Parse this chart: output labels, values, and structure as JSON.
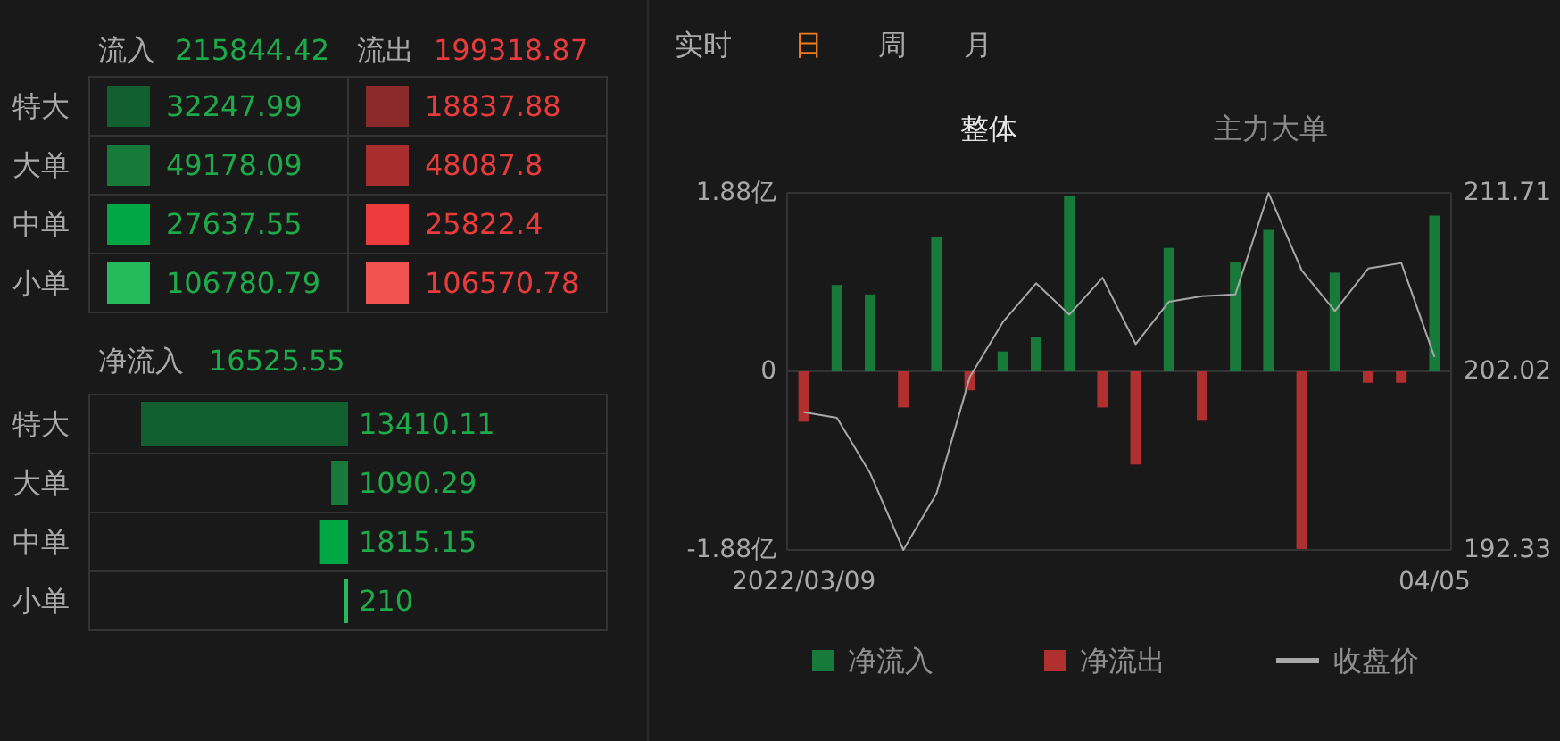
{
  "chart_data": [
    {
      "type": "other",
      "categories": [
        "特大",
        "大单",
        "中单",
        "小单"
      ],
      "data_labels": true,
      "annotations": [
        "215844.42",
        "199318.87"
      ],
      "series": [
        {
          "name": "流入",
          "colors": [
            "#125f30",
            "#177a3a",
            "#00a744",
            "#25bb5c"
          ],
          "values": [
            32247.99,
            49178.09,
            27637.55,
            106780.79
          ]
        },
        {
          "name": "流出",
          "colors": [
            "#8b2a2a",
            "#a82e2e",
            "#ee3b3b",
            "#f25252"
          ],
          "values": [
            18837.88,
            48087.8,
            25822.4,
            106570.78
          ]
        }
      ]
    },
    {
      "type": "bar",
      "orientation": "horizontal",
      "title": "净流入",
      "annotations": [
        "16525.55"
      ],
      "categories": [
        "特大",
        "大单",
        "中单",
        "小单"
      ],
      "values": [
        13410.11,
        1090.29,
        1815.15,
        210
      ],
      "colors": [
        "#125f30",
        "#177a3a",
        "#00a744",
        "#25bb5c"
      ],
      "data_labels": true
    },
    {
      "type": "bar",
      "annotations": [
        "实时",
        "日",
        "周",
        "月",
        "整体",
        "主力大单"
      ],
      "categories": [
        "2022/03/09",
        null,
        null,
        null,
        null,
        null,
        null,
        null,
        null,
        null,
        null,
        null,
        null,
        null,
        null,
        null,
        null,
        null,
        null,
        "04/05"
      ],
      "series": [
        {
          "name": "净流入",
          "color": "#177a3a",
          "values": [
            null,
            0.91,
            0.81,
            null,
            1.42,
            null,
            0.21,
            0.36,
            1.85,
            null,
            null,
            1.3,
            null,
            1.15,
            1.49,
            null,
            1.04,
            null,
            null,
            1.64
          ]
        },
        {
          "name": "净流出",
          "color": "#b03030",
          "values": [
            -0.53,
            null,
            null,
            -0.38,
            null,
            -0.2,
            null,
            null,
            null,
            -0.38,
            -0.98,
            null,
            -0.52,
            null,
            null,
            -1.87,
            null,
            -0.12,
            -0.12,
            null
          ]
        },
        {
          "name": "收盘价",
          "type": "line",
          "axis": "y2",
          "color": "#a8a8a8",
          "values": [
            199.8,
            199.5,
            196.5,
            192.33,
            195.4,
            201.7,
            204.7,
            206.8,
            205.1,
            207.1,
            203.5,
            205.8,
            206.1,
            206.2,
            211.7,
            207.5,
            205.3,
            207.6,
            207.9,
            202.8
          ]
        }
      ],
      "ylim": [
        -1.88,
        1.88
      ],
      "yticks": [
        {
          "value": 1.88,
          "label": "1.88亿"
        },
        0,
        {
          "value": -1.88,
          "label": "-1.88亿"
        }
      ],
      "y2lim": [
        192.33,
        211.71
      ],
      "y2ticks": [
        192.33,
        202.02,
        211.71
      ],
      "grid": "y",
      "legend": "bottom"
    }
  ]
}
